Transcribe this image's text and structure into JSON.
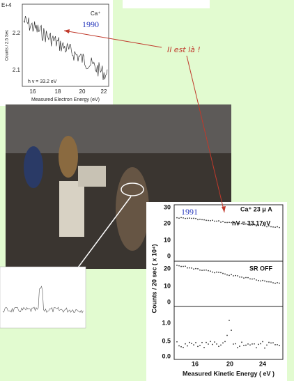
{
  "annotation": "Il est là !",
  "figure_1990": {
    "year": "1990",
    "exponent": "E+4",
    "ion": "Ca⁺",
    "photon": "h v = 33.2 eV",
    "y_label": "Counts / 2.5 Sec",
    "x_label": "Measured Electron Energy (eV)",
    "y_ticks": [
      "2.2",
      "2.1"
    ],
    "x_ticks": [
      "16",
      "18",
      "20",
      "22"
    ]
  },
  "figure_1991": {
    "year": "1991",
    "ion": "Ca⁺ 23 μ A",
    "photon": "hV = 33.17eV",
    "panel_label": "SR OFF",
    "y_label": "Counts / 20 sec ( x 10⁴)",
    "x_label": "Measured Kinetic Energy ( eV )",
    "panel_1_ticks": [
      "30",
      "20",
      "10",
      "0"
    ],
    "panel_2_ticks": [
      "20",
      "10",
      "0"
    ],
    "panel_3_ticks": [
      "1.0",
      "0.5",
      "0.0"
    ],
    "x_ticks": [
      "16",
      "20",
      "24"
    ]
  }
}
